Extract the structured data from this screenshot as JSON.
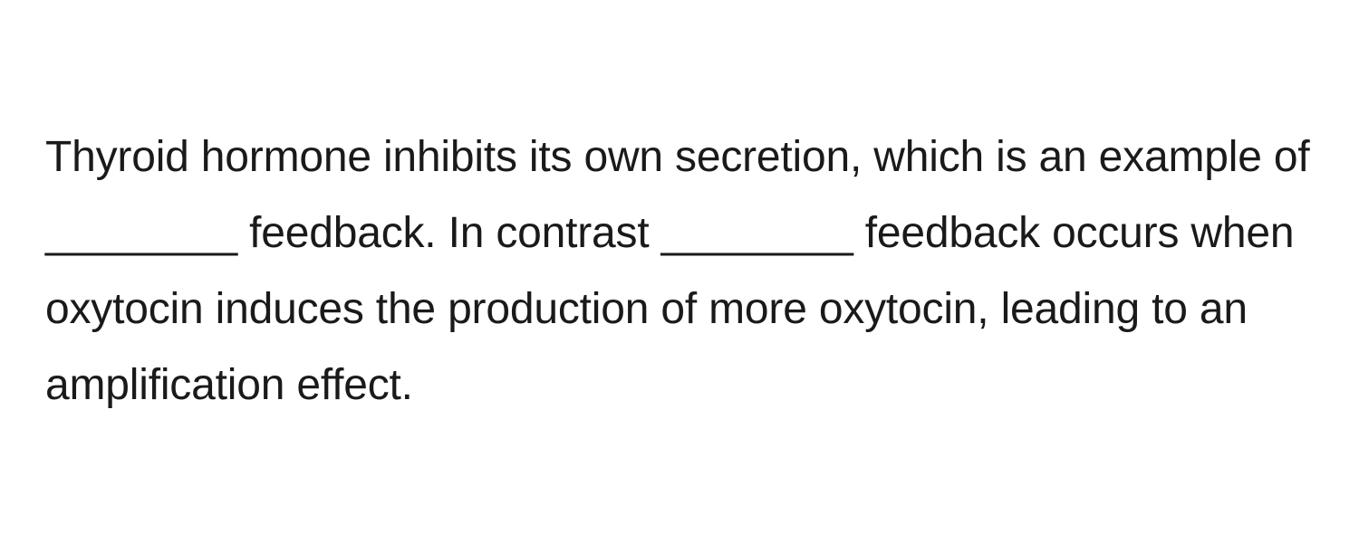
{
  "question": {
    "text": "Thyroid hormone inhibits its own secretion, which is an example of ________ feedback. In contrast ________ feedback occurs when oxytocin induces the production of more oxytocin, leading to an amplification effect.",
    "font_size": 48,
    "line_height": 1.75,
    "text_color": "#1a1a1a",
    "background_color": "#ffffff",
    "font_weight": 400
  }
}
